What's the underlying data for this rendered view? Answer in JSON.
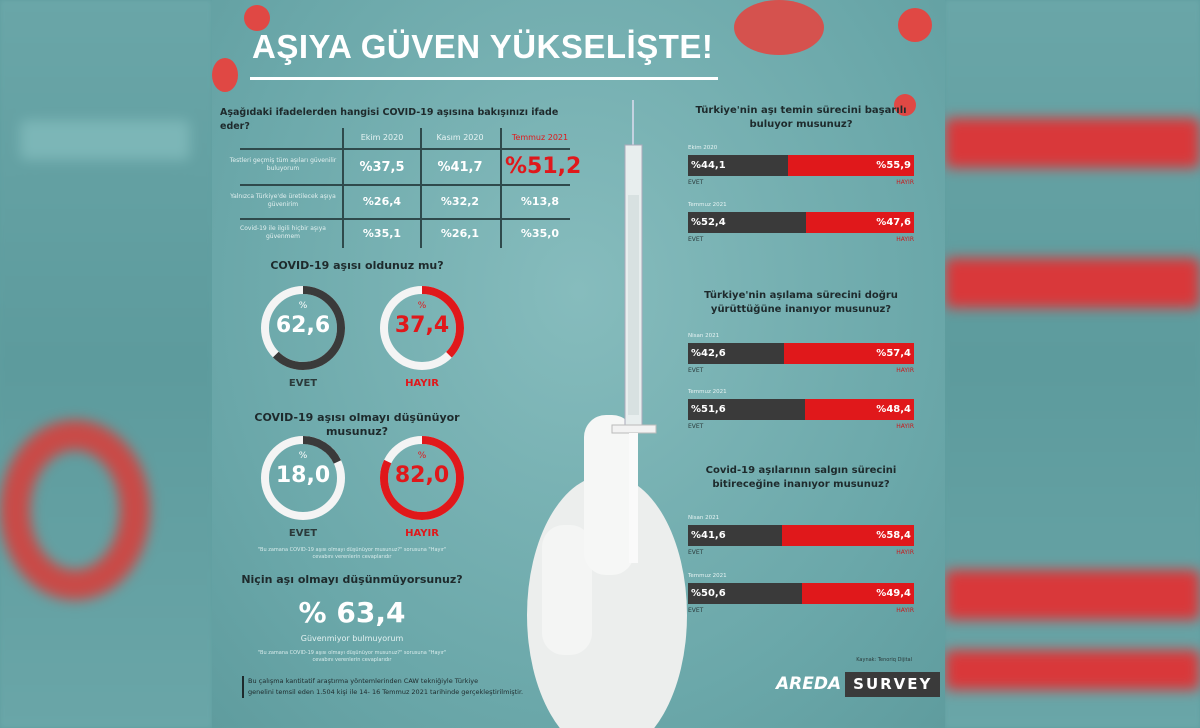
{
  "title": "AŞIYA GÜVEN YÜKSELİŞTE!",
  "colors": {
    "accent_red": "#e0181b",
    "dark": "#3a3a3a",
    "background": "#6aa7a9"
  },
  "table": {
    "question": "Aşağıdaki ifadelerden hangisi COVID-19 aşısına bakışınızı ifade eder?",
    "columns": [
      "Ekim 2020",
      "Kasım 2020",
      "Temmuz 2021"
    ],
    "rows": [
      {
        "label": "Testleri geçmiş tüm aşıları güvenilir buluyorum",
        "values": [
          "%37,5",
          "%41,7",
          "%51,2"
        ]
      },
      {
        "label": "Yalnızca Türkiye'de üretilecek aşıya güvenirim",
        "values": [
          "%26,4",
          "%32,2",
          "%13,8"
        ]
      },
      {
        "label": "Covid-19 ile ilgili hiçbir aşıya güvenmem",
        "values": [
          "%35,1",
          "%26,1",
          "%35,0"
        ]
      }
    ]
  },
  "donuts1": {
    "question": "COVID-19 aşısı oldunuz mu?",
    "yes": {
      "label": "EVET",
      "value": "62,6",
      "pct": 62.6
    },
    "no": {
      "label": "HAYIR",
      "value": "37,4",
      "pct": 37.4
    },
    "pct_sign": "%"
  },
  "donuts2": {
    "question": "COVID-19 aşısı olmayı düşünüyor musunuz?",
    "yes": {
      "label": "EVET",
      "value": "18,0",
      "pct": 18.0
    },
    "no": {
      "label": "HAYIR",
      "value": "82,0",
      "pct": 82.0
    },
    "pct_sign": "%",
    "footnote": "\"Bu zamana COVID-19 aşısı olmayı düşünüyor musunuz?\" sorusuna \"Hayır\" cevabını verenlerin cevaplarıdır"
  },
  "why": {
    "question": "Niçin aşı olmayı düşünmüyorsunuz?",
    "value": "% 63,4",
    "answer": "Güvenmiyor bulmuyorum",
    "footnote": "\"Bu zamana COVID-19 aşısı olmayı düşünüyor musunuz?\" sorusuna \"Hayır\" cevabını verenlerin cevaplarıdır"
  },
  "method": {
    "line1": "Bu çalışma kantitatif araştırma yöntemlerinden CAW tekniğiyle Türkiye",
    "line2": "genelini temsil eden 1.504 kişi ile 14- 16 Temmuz 2021 tarihinde gerçekleştirilmiştir."
  },
  "bars": [
    {
      "question": "Türkiye'nin aşı temin sürecini başarılı buluyor musunuz?",
      "rows": [
        {
          "period": "Ekim 2020",
          "yes": "%44,1",
          "no": "%55,9",
          "yes_pct": 44.1
        },
        {
          "period": "Temmuz 2021",
          "yes": "%52,4",
          "no": "%47,6",
          "yes_pct": 52.4
        }
      ]
    },
    {
      "question": "Türkiye'nin aşılama sürecini doğru yürüttüğüne inanıyor musunuz?",
      "rows": [
        {
          "period": "Nisan 2021",
          "yes": "%42,6",
          "no": "%57,4",
          "yes_pct": 42.6
        },
        {
          "period": "Temmuz 2021",
          "yes": "%51,6",
          "no": "%48,4",
          "yes_pct": 51.6
        }
      ]
    },
    {
      "question": "Covid-19 aşılarının salgın sürecini bitireceğine inanıyor musunuz?",
      "rows": [
        {
          "period": "Nisan 2021",
          "yes": "%41,6",
          "no": "%58,4",
          "yes_pct": 41.6
        },
        {
          "period": "Temmuz 2021",
          "yes": "%50,6",
          "no": "%49,4",
          "yes_pct": 50.6
        }
      ]
    }
  ],
  "yes_label": "EVET",
  "no_label": "HAYIR",
  "source": "Kaynak: Tenoriq Dijital",
  "logo": {
    "brand": "AREDA",
    "survey": "SURVEY"
  }
}
